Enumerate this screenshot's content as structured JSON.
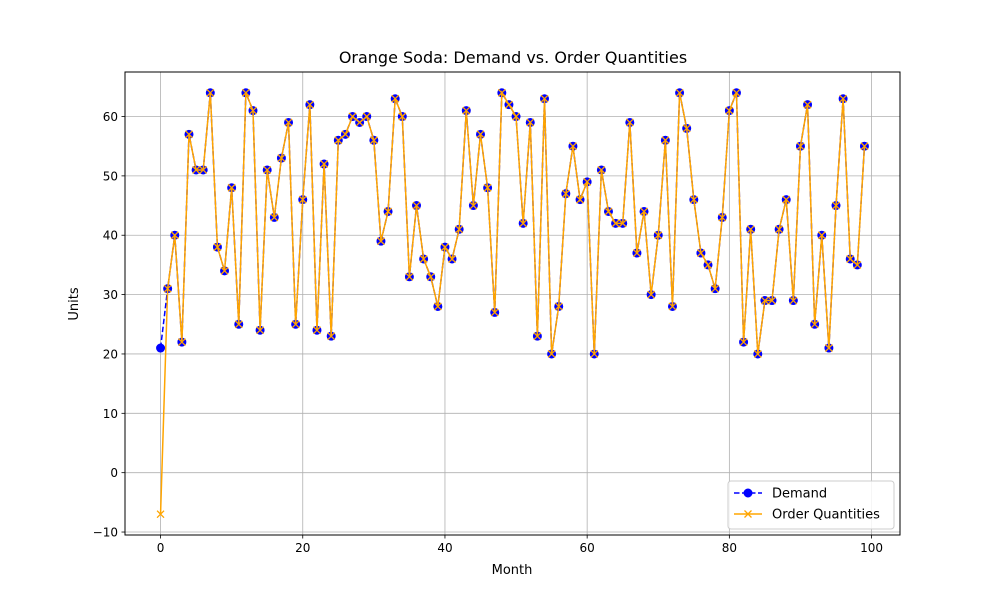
{
  "chart_data": {
    "type": "line",
    "title": "Orange Soda: Demand vs. Order Quantities",
    "xlabel": "Month",
    "ylabel": "Units",
    "xlim": [
      -5,
      104
    ],
    "ylim": [
      -10.5,
      67.5
    ],
    "xticks": [
      0,
      20,
      40,
      60,
      80,
      100
    ],
    "yticks": [
      -10,
      0,
      10,
      20,
      30,
      40,
      50,
      60
    ],
    "grid": true,
    "legend_position": "lower-right",
    "series": [
      {
        "name": "Demand",
        "color": "#0000ff",
        "line_style": "dashed",
        "marker": "circle",
        "values": [
          21,
          31,
          40,
          22,
          57,
          51,
          51,
          64,
          38,
          34,
          48,
          25,
          64,
          61,
          24,
          51,
          43,
          53,
          59,
          25,
          46,
          62,
          24,
          52,
          23,
          56,
          57,
          60,
          59,
          60,
          56,
          39,
          44,
          63,
          60,
          33,
          45,
          36,
          33,
          28,
          38,
          36,
          41,
          61,
          45,
          57,
          48,
          27,
          64,
          62,
          60,
          42,
          59,
          23,
          63,
          20,
          28,
          47,
          55,
          46,
          49,
          20,
          51,
          44,
          42,
          42,
          59,
          37,
          44,
          30,
          40,
          56,
          28,
          64,
          58,
          46,
          37,
          35,
          31,
          43,
          61,
          64,
          22,
          41,
          20,
          29,
          29,
          41,
          46,
          29,
          55,
          62,
          25,
          40,
          21,
          45,
          63,
          36,
          35,
          55
        ]
      },
      {
        "name": "Order Quantities",
        "color": "#ffa500",
        "line_style": "solid",
        "marker": "x",
        "values": [
          -7,
          31,
          40,
          22,
          57,
          51,
          51,
          64,
          38,
          34,
          48,
          25,
          64,
          61,
          24,
          51,
          43,
          53,
          59,
          25,
          46,
          62,
          24,
          52,
          23,
          56,
          57,
          60,
          59,
          60,
          56,
          39,
          44,
          63,
          60,
          33,
          45,
          36,
          33,
          28,
          38,
          36,
          41,
          61,
          45,
          57,
          48,
          27,
          64,
          62,
          60,
          42,
          59,
          23,
          63,
          20,
          28,
          47,
          55,
          46,
          49,
          20,
          51,
          44,
          42,
          42,
          59,
          37,
          44,
          30,
          40,
          56,
          28,
          64,
          58,
          46,
          37,
          35,
          31,
          43,
          61,
          64,
          22,
          41,
          20,
          29,
          29,
          41,
          46,
          29,
          55,
          62,
          25,
          40,
          21,
          45,
          63,
          36,
          35,
          55
        ]
      }
    ]
  }
}
